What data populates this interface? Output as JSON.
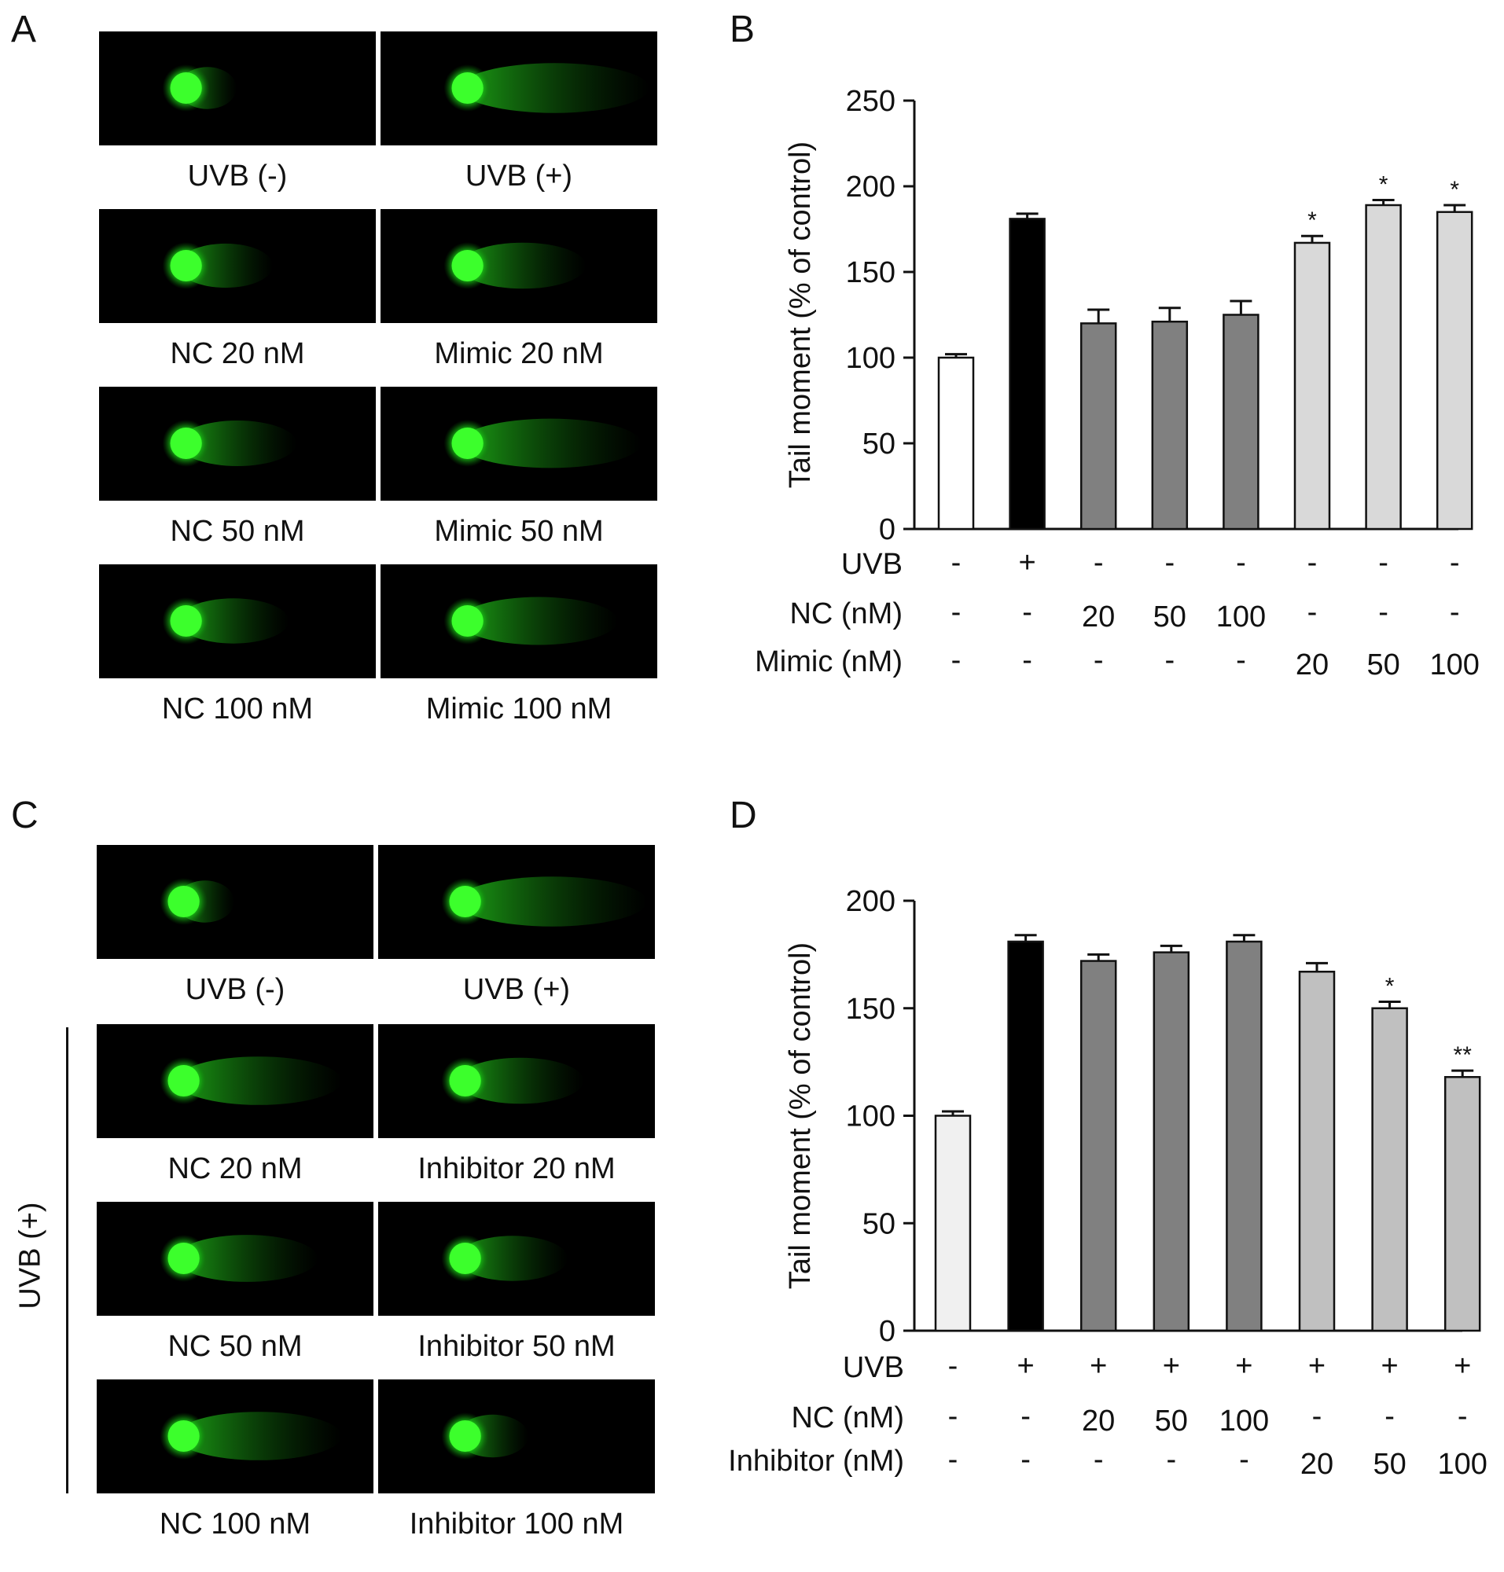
{
  "panels": {
    "A": {
      "letter": "A",
      "cells": [
        {
          "label": "UVB (-)",
          "tail": 0.12
        },
        {
          "label": "UVB (+)",
          "tail": 0.95
        },
        {
          "label": "NC 20 nM",
          "tail": 0.35
        },
        {
          "label": "Mimic 20 nM",
          "tail": 0.55
        },
        {
          "label": "NC 50 nM",
          "tail": 0.5
        },
        {
          "label": "Mimic 50 nM",
          "tail": 0.9
        },
        {
          "label": "NC 100 nM",
          "tail": 0.45
        },
        {
          "label": "Mimic 100 nM",
          "tail": 0.75
        }
      ]
    },
    "C": {
      "letter": "C",
      "side_label": "UVB (+)",
      "cells": [
        {
          "label": "UVB (-)",
          "tail": 0.12
        },
        {
          "label": "UVB (+)",
          "tail": 0.95
        },
        {
          "label": "NC 20 nM",
          "tail": 0.8
        },
        {
          "label": "Inhibitor 20 nM",
          "tail": 0.55
        },
        {
          "label": "NC 50 nM",
          "tail": 0.65
        },
        {
          "label": "Inhibitor 50 nM",
          "tail": 0.45
        },
        {
          "label": "NC 100 nM",
          "tail": 0.8
        },
        {
          "label": "Inhibitor 100 nM",
          "tail": 0.2
        }
      ]
    }
  },
  "chart_data": [
    {
      "panel": "B",
      "type": "bar",
      "ylabel": "Tail moment (% of control)",
      "ylim": [
        0,
        250
      ],
      "yticks": [
        0,
        50,
        100,
        150,
        200,
        250
      ],
      "values": [
        100,
        181,
        120,
        121,
        125,
        167,
        189,
        185
      ],
      "errors": [
        2,
        3,
        8,
        8,
        8,
        4,
        3,
        4
      ],
      "significance": [
        "",
        "",
        "",
        "",
        "",
        "*",
        "*",
        "*"
      ],
      "bar_colors": [
        "#ffffff",
        "#000000",
        "#808080",
        "#808080",
        "#808080",
        "#d9d9d9",
        "#d9d9d9",
        "#d9d9d9"
      ],
      "conditions": [
        {
          "label": "UVB",
          "values": [
            "-",
            "+",
            "-",
            "-",
            "-",
            "-",
            "-",
            "-"
          ]
        },
        {
          "label": "NC (nM)",
          "values": [
            "-",
            "-",
            "20",
            "50",
            "100",
            "-",
            "-",
            "-"
          ]
        },
        {
          "label": "Mimic (nM)",
          "values": [
            "-",
            "-",
            "-",
            "-",
            "-",
            "20",
            "50",
            "100"
          ]
        }
      ]
    },
    {
      "panel": "D",
      "type": "bar",
      "ylabel": "Tail moment (% of control)",
      "ylim": [
        0,
        200
      ],
      "yticks": [
        0,
        50,
        100,
        150,
        200
      ],
      "values": [
        100,
        181,
        172,
        176,
        181,
        167,
        150,
        118
      ],
      "errors": [
        2,
        3,
        3,
        3,
        3,
        4,
        3,
        3
      ],
      "significance": [
        "",
        "",
        "",
        "",
        "",
        "",
        "*",
        "**"
      ],
      "bar_colors": [
        "#f0f0f0",
        "#000000",
        "#808080",
        "#808080",
        "#808080",
        "#c0c0c0",
        "#c0c0c0",
        "#c0c0c0"
      ],
      "conditions": [
        {
          "label": "UVB",
          "values": [
            "-",
            "+",
            "+",
            "+",
            "+",
            "+",
            "+",
            "+"
          ]
        },
        {
          "label": "NC (nM)",
          "values": [
            "-",
            "-",
            "20",
            "50",
            "100",
            "-",
            "-",
            "-"
          ]
        },
        {
          "label": "Inhibitor (nM)",
          "values": [
            "-",
            "-",
            "-",
            "-",
            "-",
            "20",
            "50",
            "100"
          ]
        }
      ]
    }
  ],
  "panel_letters": {
    "B": "B",
    "D": "D"
  }
}
